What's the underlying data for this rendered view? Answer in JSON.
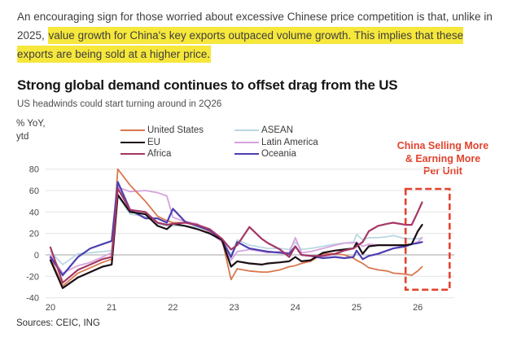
{
  "intro": {
    "segments": [
      {
        "text": "An encouraging sign for those worried about excessive Chinese price competition is that, unlike in 2025, ",
        "highlight": false
      },
      {
        "text": "value growth for China's key exports outpaced volume growth. This implies that these exports are being sold at a higher price.",
        "highlight": true
      }
    ]
  },
  "chart": {
    "title": "Strong global demand continues to offset drag from the US",
    "subtitle": "US headwinds could start turning around in 2Q26",
    "y_unit_line1": "% YoY,",
    "y_unit_line2": "ytd",
    "annotation": {
      "lines": [
        "China Selling More",
        "& Earning More",
        "Per Unit"
      ],
      "color": "#E2432E"
    },
    "sources": "Sources: CEIC, ING"
  },
  "chart_data": {
    "type": "line",
    "title": "Strong global demand continues to offset drag from the US",
    "subtitle": "US headwinds could start turning around in 2Q26",
    "xlabel": "",
    "ylabel": "% YoY, ytd",
    "ylim": [
      -40,
      80
    ],
    "xlim": [
      2019.95,
      2026.6
    ],
    "grid": true,
    "legend_position": "top",
    "yticks": [
      80,
      60,
      40,
      20,
      0,
      -20,
      -40
    ],
    "xticks": [
      20,
      21,
      22,
      23,
      24,
      25,
      26
    ],
    "x": [
      2020.0,
      2020.2,
      2020.45,
      2020.65,
      2020.85,
      2021.0,
      2021.1,
      2021.3,
      2021.55,
      2021.75,
      2021.9,
      2022.0,
      2022.2,
      2022.4,
      2022.6,
      2022.8,
      2022.95,
      2023.05,
      2023.25,
      2023.45,
      2023.55,
      2023.75,
      2023.9,
      2024.0,
      2024.1,
      2024.25,
      2024.45,
      2024.65,
      2024.8,
      2024.95,
      2025.0,
      2025.1,
      2025.2,
      2025.35,
      2025.5,
      2025.6,
      2025.8,
      2025.9,
      2026.0,
      2026.07
    ],
    "series": [
      {
        "name": "United States",
        "color": "#D9784F",
        "width": 1.8,
        "draw_order": 3,
        "values": [
          -3,
          -29,
          -17,
          -12,
          -7,
          -4,
          80,
          65,
          50,
          36,
          32,
          30,
          30,
          27,
          22,
          15,
          -23,
          -13,
          -15,
          -16,
          -16,
          -14,
          -11,
          -10,
          -8,
          -6,
          1,
          1,
          0,
          -3,
          -5,
          -8,
          -12,
          -14,
          -15,
          -17,
          -18,
          -19,
          -15,
          -11
        ]
      },
      {
        "name": "EU",
        "color": "#1A0E14",
        "width": 2.2,
        "draw_order": 5,
        "values": [
          -5,
          -31,
          -21,
          -16,
          -11,
          -9,
          56,
          40,
          38,
          27,
          24,
          29,
          27,
          24,
          20,
          14,
          -11,
          -6,
          -8,
          -9,
          -8,
          -7,
          -6,
          -2,
          -6,
          -5,
          2,
          4,
          5,
          6,
          11,
          1,
          8,
          9,
          9,
          9,
          9,
          10,
          22,
          28
        ]
      },
      {
        "name": "Africa",
        "color": "#A53765",
        "width": 2.2,
        "draw_order": 6,
        "values": [
          7,
          -26,
          -14,
          -9,
          -4,
          -2,
          62,
          42,
          40,
          30,
          28,
          29,
          30,
          28,
          24,
          15,
          5,
          9,
          26,
          15,
          11,
          5,
          -2,
          8,
          0,
          -1,
          -1,
          1,
          4,
          6,
          8,
          12,
          22,
          27,
          29,
          30,
          28,
          28,
          40,
          49
        ]
      },
      {
        "name": "ASEAN",
        "color": "#B9D8E2",
        "width": 1.8,
        "draw_order": 1,
        "values": [
          3,
          -9,
          1,
          2,
          3,
          4,
          55,
          38,
          36,
          29,
          27,
          27,
          27,
          26,
          22,
          14,
          0,
          14,
          9,
          7,
          6,
          6,
          5,
          12,
          5,
          6,
          8,
          10,
          11,
          12,
          19,
          14,
          16,
          16,
          17,
          18,
          15,
          15,
          15,
          16
        ]
      },
      {
        "name": "Latin America",
        "color": "#D6A4DE",
        "width": 1.8,
        "draw_order": 2,
        "values": [
          0,
          -17,
          -10,
          -7,
          -2,
          2,
          63,
          59,
          60,
          58,
          55,
          35,
          31,
          29,
          21,
          12,
          -5,
          3,
          5,
          3,
          2,
          3,
          2,
          16,
          2,
          3,
          6,
          9,
          11,
          11,
          12,
          8,
          10,
          9,
          9,
          9,
          8,
          10,
          12,
          16
        ]
      },
      {
        "name": "Oceania",
        "color": "#4D3FB0",
        "width": 2.2,
        "draw_order": 4,
        "values": [
          -2,
          -19,
          -2,
          6,
          10,
          13,
          68,
          42,
          34,
          34,
          30,
          43,
          31,
          27,
          23,
          14,
          -2,
          12,
          6,
          4,
          3,
          2,
          1,
          8,
          0,
          -1,
          -3,
          -2,
          -3,
          -2,
          4,
          -4,
          -1,
          1,
          4,
          6,
          8,
          10,
          11,
          12
        ]
      }
    ],
    "highlight_box": {
      "x_range": [
        2025.8,
        2026.52
      ],
      "y_range": [
        -32.5,
        61.5
      ]
    }
  }
}
